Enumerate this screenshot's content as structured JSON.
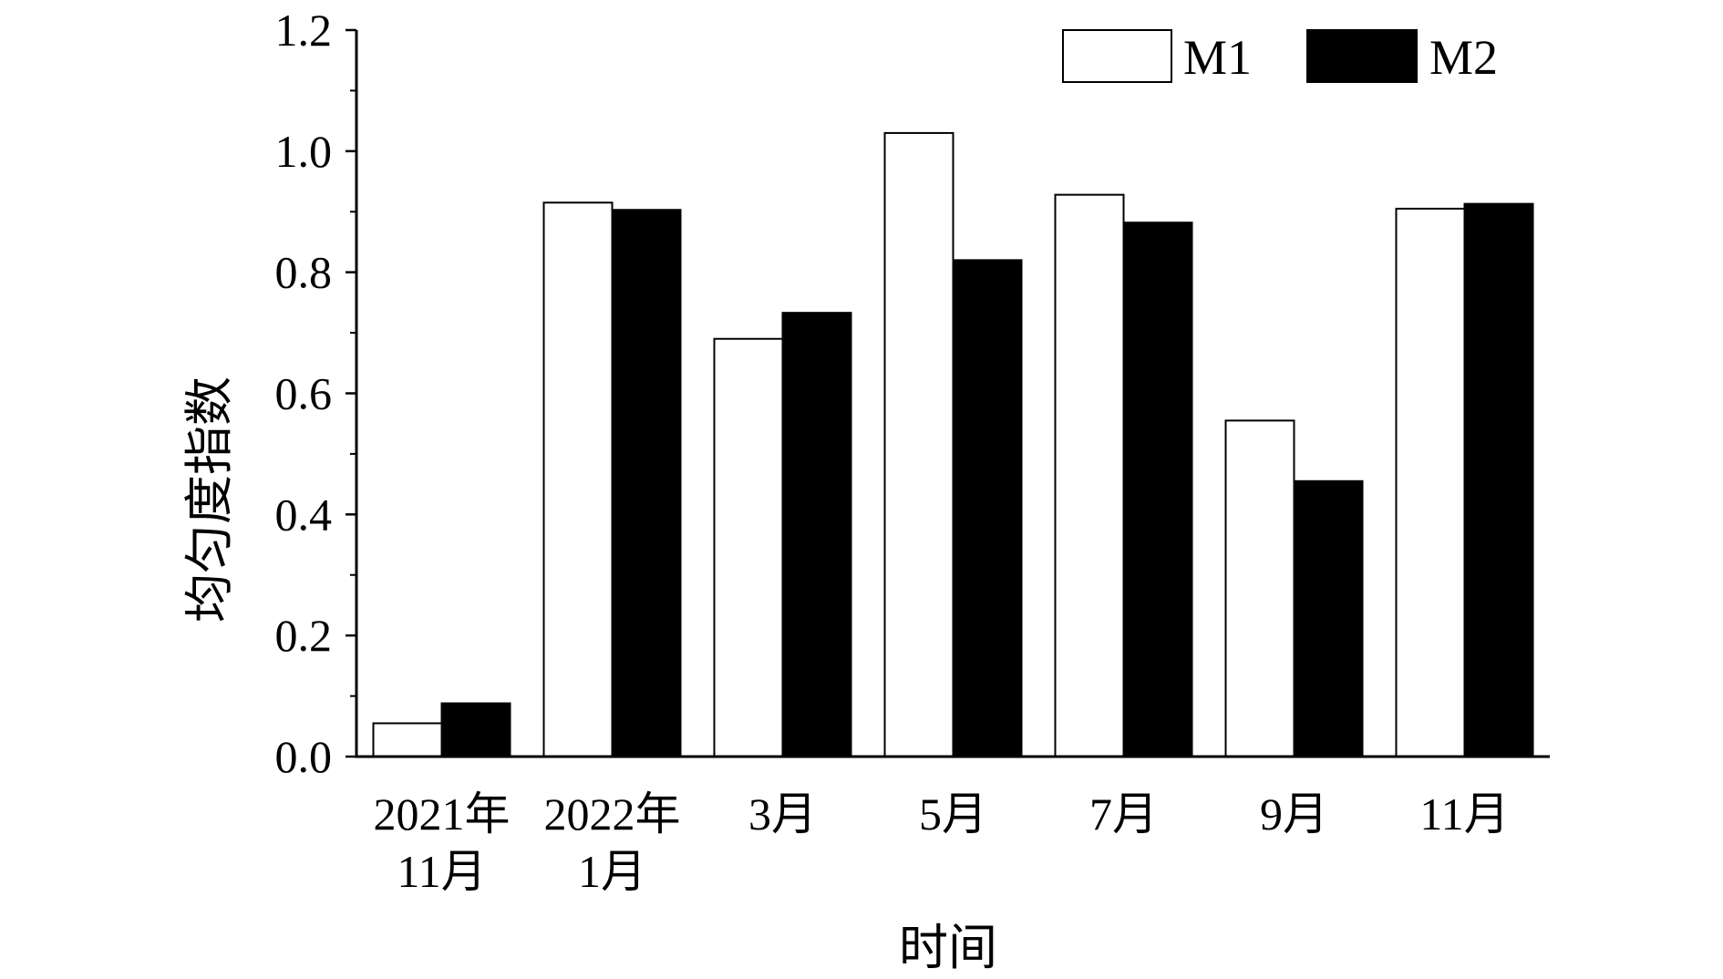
{
  "chart_data": {
    "type": "bar",
    "title": "",
    "xlabel": "时间",
    "ylabel": "均匀度指数",
    "categories": [
      [
        "2021年",
        "11月"
      ],
      [
        "2022年",
        "1月"
      ],
      [
        "3月"
      ],
      [
        "5月"
      ],
      [
        "7月"
      ],
      [
        "9月"
      ],
      [
        "11月"
      ]
    ],
    "series": [
      {
        "name": "M1",
        "color": "#ffffff",
        "values": [
          0.055,
          0.915,
          0.69,
          1.03,
          0.928,
          0.555,
          0.905
        ]
      },
      {
        "name": "M2",
        "color": "#000000",
        "values": [
          0.088,
          0.903,
          0.733,
          0.82,
          0.882,
          0.455,
          0.913
        ]
      }
    ],
    "ylim": [
      0,
      1.2
    ],
    "yticks": [
      "0.0",
      "0.2",
      "0.4",
      "0.6",
      "0.8",
      "1.0",
      "1.2"
    ],
    "grid": false,
    "legend_position": "top-right"
  }
}
